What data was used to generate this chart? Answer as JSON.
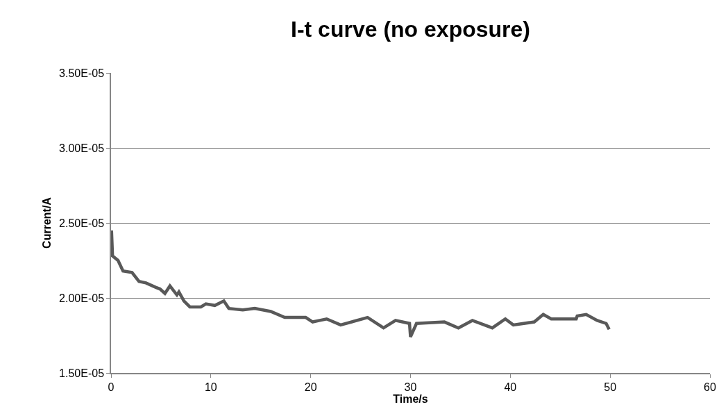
{
  "chart_data": {
    "type": "line",
    "title": "I-t curve (no exposure)",
    "xlabel": "Time/s",
    "ylabel": "Current/A",
    "x": [
      0.05,
      0.15,
      0.7,
      1.2,
      2.1,
      2.8,
      3.5,
      4.5,
      4.9,
      5.4,
      5.9,
      6.6,
      6.8,
      7.3,
      7.9,
      9,
      9.5,
      10.4,
      11.3,
      11.8,
      13.2,
      14.4,
      16,
      17.4,
      19.5,
      20.2,
      20.9,
      21.6,
      23,
      25.7,
      27.3,
      28.5,
      29.9,
      30,
      30.6,
      33.4,
      34.8,
      36.2,
      38.2,
      39.5,
      40.3,
      42.4,
      43.3,
      44.1,
      46.6,
      46.7,
      47.6,
      48.7,
      49.6,
      49.9
    ],
    "series": [
      {
        "color": "#595959",
        "values": [
          2.45e-05,
          2.28e-05,
          2.25e-05,
          2.18e-05,
          2.17e-05,
          2.11e-05,
          2.1e-05,
          2.07e-05,
          2.06e-05,
          2.03e-05,
          2.08e-05,
          2.02e-05,
          2.04e-05,
          1.98e-05,
          1.94e-05,
          1.94e-05,
          1.96e-05,
          1.95e-05,
          1.98e-05,
          1.93e-05,
          1.92e-05,
          1.93e-05,
          1.91e-05,
          1.87e-05,
          1.87e-05,
          1.84e-05,
          1.85e-05,
          1.86e-05,
          1.82e-05,
          1.87e-05,
          1.8e-05,
          1.85e-05,
          1.83e-05,
          1.74e-05,
          1.83e-05,
          1.84e-05,
          1.8e-05,
          1.85e-05,
          1.8e-05,
          1.86e-05,
          1.82e-05,
          1.84e-05,
          1.89e-05,
          1.86e-05,
          1.86e-05,
          1.88e-05,
          1.89e-05,
          1.85e-05,
          1.83e-05,
          1.79e-05
        ]
      }
    ],
    "xlim": [
      0,
      60
    ],
    "xticks": [
      0,
      10,
      20,
      30,
      40,
      50,
      60
    ],
    "ylim": [
      1.5e-05,
      3.5e-05
    ],
    "yticks": [
      {
        "value": 1.5e-05,
        "label": "1.50E-05"
      },
      {
        "value": 2e-05,
        "label": "2.00E-05"
      },
      {
        "value": 2.5e-05,
        "label": "2.50E-05"
      },
      {
        "value": 3e-05,
        "label": "3.00E-05"
      },
      {
        "value": 3.5e-05,
        "label": "3.50E-05"
      }
    ],
    "grid": "y",
    "legend": false,
    "marker": "none",
    "line_style": "solid"
  }
}
